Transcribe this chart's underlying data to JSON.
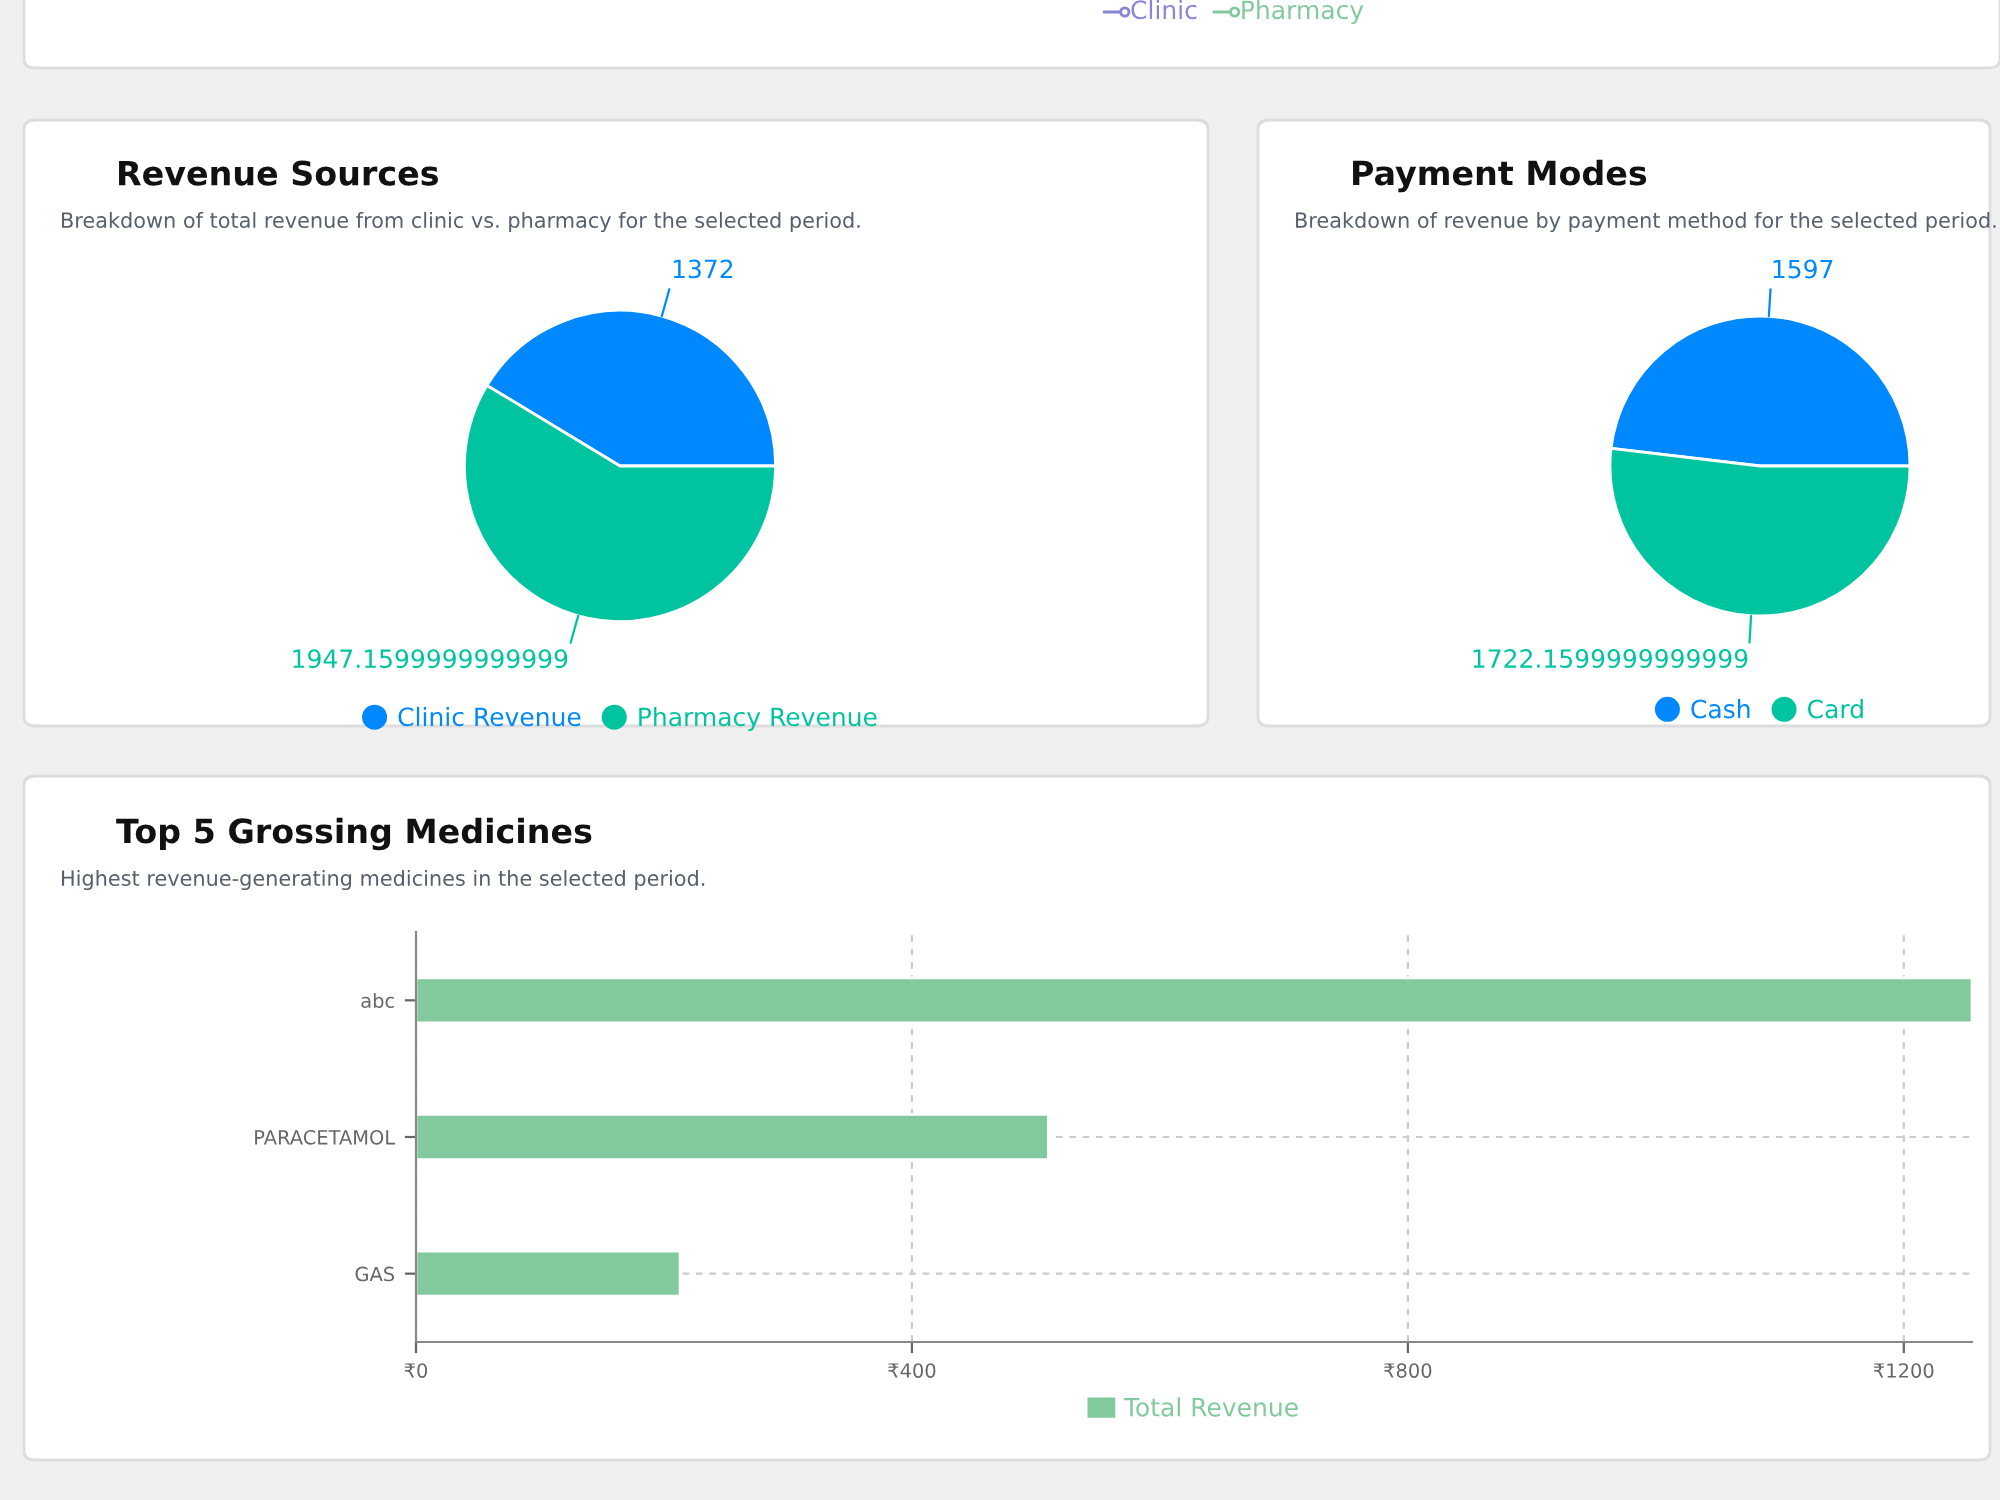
{
  "chart_data": [
    {
      "type": "other",
      "annotations": [
        "Clinic",
        "Pharmacy"
      ],
      "colors": [
        "#8884d8",
        "#82ca9d"
      ]
    },
    {
      "type": "pie",
      "title": "Revenue Sources",
      "subtitle": "Breakdown of total revenue from clinic vs. pharmacy for the selected period.",
      "categories": [
        "Clinic Revenue",
        "Pharmacy Revenue"
      ],
      "values": [
        1372,
        1947.1599999999999
      ],
      "colors": [
        "#0088fe",
        "#00c49f"
      ],
      "data_labels": true,
      "legend": "bottom"
    },
    {
      "type": "pie",
      "title": "Payment Modes",
      "subtitle": "Breakdown of revenue by payment method for the selected period.",
      "categories": [
        "Cash",
        "Card"
      ],
      "values": [
        1597,
        1722.1599999999999
      ],
      "colors": [
        "#0088fe",
        "#00c49f"
      ],
      "data_labels": true,
      "legend": "bottom"
    },
    {
      "type": "bar",
      "orientation": "horizontal",
      "title": "Top 5 Grossing Medicines",
      "subtitle": "Highest revenue-generating medicines in the selected period.",
      "categories": [
        "abc",
        "PARACETAMOL",
        "GAS"
      ],
      "series": [
        {
          "name": "Total Revenue",
          "color": "#82ca9d",
          "values": [
            1255,
            510,
            213
          ]
        }
      ],
      "xlim": [
        0,
        1255
      ],
      "xticks": [
        {
          "value": 0,
          "label": "₹0"
        },
        {
          "value": 400,
          "label": "₹400"
        },
        {
          "value": 800,
          "label": "₹800"
        },
        {
          "value": 1200,
          "label": "₹1200"
        }
      ],
      "grid": true,
      "legend": "bottom"
    }
  ]
}
